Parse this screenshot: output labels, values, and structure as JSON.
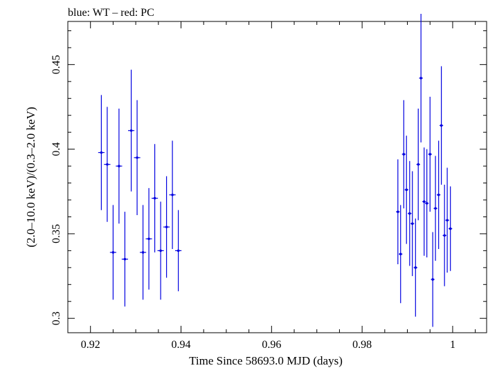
{
  "chart_data": {
    "type": "scatter",
    "title": "blue: WT – red: PC",
    "xlabel": "Time Since 58693.0 MJD (days)",
    "ylabel": "(2.0–10.0 keV)/(0.3–2.0 keV)",
    "xlim": [
      0.915,
      1.0075
    ],
    "ylim": [
      0.2915,
      0.4755
    ],
    "xticks": [
      0.92,
      0.94,
      0.96,
      0.98,
      1.0
    ],
    "xtick_labels": [
      "0.92",
      "0.94",
      "0.96",
      "0.98",
      "1"
    ],
    "yticks": [
      0.3,
      0.35,
      0.4,
      0.45
    ],
    "ytick_labels": [
      "0.3",
      "0.35",
      "0.4",
      "0.45"
    ],
    "grid": false,
    "colors": {
      "series": "#0000e0",
      "axes": "#000000"
    },
    "series": [
      {
        "points": [
          {
            "x": 0.9224,
            "y": 0.398,
            "yerr": 0.034,
            "xerr": 0.0007
          },
          {
            "x": 0.9237,
            "y": 0.391,
            "yerr": 0.034,
            "xerr": 0.0007
          },
          {
            "x": 0.925,
            "y": 0.339,
            "yerr": 0.028,
            "xerr": 0.0007
          },
          {
            "x": 0.9263,
            "y": 0.39,
            "yerr": 0.034,
            "xerr": 0.0007
          },
          {
            "x": 0.9276,
            "y": 0.335,
            "yerr": 0.028,
            "xerr": 0.0007
          },
          {
            "x": 0.929,
            "y": 0.411,
            "yerr": 0.036,
            "xerr": 0.0007
          },
          {
            "x": 0.9303,
            "y": 0.395,
            "yerr": 0.034,
            "xerr": 0.0007
          },
          {
            "x": 0.9316,
            "y": 0.339,
            "yerr": 0.028,
            "xerr": 0.0007
          },
          {
            "x": 0.9329,
            "y": 0.347,
            "yerr": 0.03,
            "xerr": 0.0007
          },
          {
            "x": 0.9342,
            "y": 0.371,
            "yerr": 0.032,
            "xerr": 0.0007
          },
          {
            "x": 0.9355,
            "y": 0.34,
            "yerr": 0.029,
            "xerr": 0.0007
          },
          {
            "x": 0.9368,
            "y": 0.354,
            "yerr": 0.03,
            "xerr": 0.0007
          },
          {
            "x": 0.9381,
            "y": 0.373,
            "yerr": 0.032,
            "xerr": 0.0007
          },
          {
            "x": 0.9394,
            "y": 0.34,
            "yerr": 0.024,
            "xerr": 0.0007
          },
          {
            "x": 0.9879,
            "y": 0.363,
            "yerr": 0.031,
            "xerr": 0.0004
          },
          {
            "x": 0.9885,
            "y": 0.338,
            "yerr": 0.029,
            "xerr": 0.0004
          },
          {
            "x": 0.9892,
            "y": 0.397,
            "yerr": 0.032,
            "xerr": 0.0004
          },
          {
            "x": 0.9898,
            "y": 0.376,
            "yerr": 0.032,
            "xerr": 0.0004
          },
          {
            "x": 0.9905,
            "y": 0.362,
            "yerr": 0.031,
            "xerr": 0.0004
          },
          {
            "x": 0.9911,
            "y": 0.356,
            "yerr": 0.031,
            "xerr": 0.0004
          },
          {
            "x": 0.9918,
            "y": 0.33,
            "yerr": 0.029,
            "xerr": 0.0004
          },
          {
            "x": 0.9924,
            "y": 0.391,
            "yerr": 0.033,
            "xerr": 0.0004
          },
          {
            "x": 0.993,
            "y": 0.442,
            "yerr": 0.038,
            "xerr": 0.0004
          },
          {
            "x": 0.9937,
            "y": 0.369,
            "yerr": 0.032,
            "xerr": 0.0004
          },
          {
            "x": 0.9943,
            "y": 0.368,
            "yerr": 0.032,
            "xerr": 0.0004
          },
          {
            "x": 0.995,
            "y": 0.397,
            "yerr": 0.034,
            "xerr": 0.0004
          },
          {
            "x": 0.9956,
            "y": 0.323,
            "yerr": 0.028,
            "xerr": 0.0004
          },
          {
            "x": 0.9962,
            "y": 0.365,
            "yerr": 0.031,
            "xerr": 0.0004
          },
          {
            "x": 0.9969,
            "y": 0.373,
            "yerr": 0.032,
            "xerr": 0.0004
          },
          {
            "x": 0.9975,
            "y": 0.414,
            "yerr": 0.035,
            "xerr": 0.0004
          },
          {
            "x": 0.9982,
            "y": 0.349,
            "yerr": 0.03,
            "xerr": 0.0004
          },
          {
            "x": 0.9988,
            "y": 0.358,
            "yerr": 0.031,
            "xerr": 0.0004
          },
          {
            "x": 0.9995,
            "y": 0.353,
            "yerr": 0.025,
            "xerr": 0.0004
          }
        ]
      }
    ]
  }
}
